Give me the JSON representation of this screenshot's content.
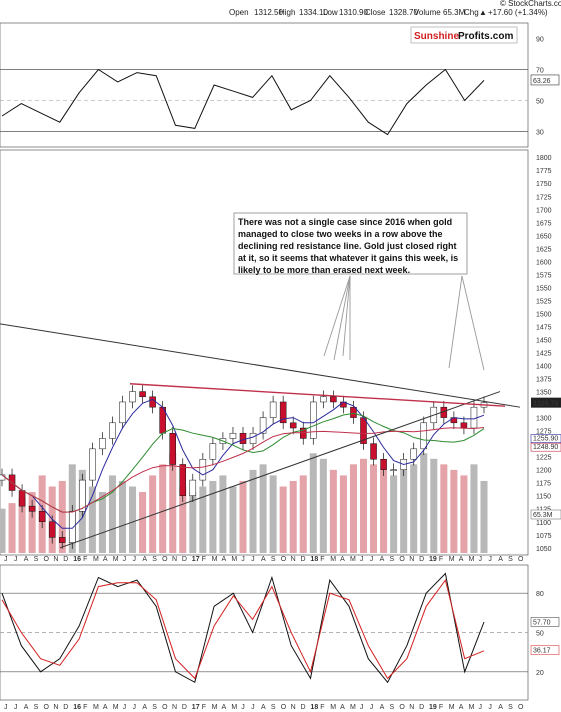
{
  "header": {
    "open_label": "Open",
    "open_value": "1312.50",
    "high_label": "High",
    "high_value": "1334.10",
    "low_label": "Low",
    "low_value": "1310.90",
    "close_label": "Close",
    "close_value": "1328.70",
    "volume_label": "Volume",
    "volume_value": "65.3M",
    "chg_label": "Chg",
    "chg_value": "+17.60 (+1.34%)",
    "chg_arrow": "▲",
    "credit": "© StockCharts.com"
  },
  "logo": {
    "part1": "Sunshine",
    "part2": "Profits",
    "part3": ".com"
  },
  "annotation": {
    "lines": [
      "There was not a single case since 2016 when gold",
      "managed to close two weeks in a row above the",
      "declining red resistance line. Gold just closed right",
      "at it, so it seems that whatever it gains this week, is",
      "likely to be more than erased next week."
    ]
  },
  "colors": {
    "price_up": "#ffffff",
    "price_down": "#c8102e",
    "ma_green": "#2e8b2e",
    "ma_red": "#c0304a",
    "ma_blue": "#2b2b9e",
    "resistance": "#c0304a",
    "rsi_line": "#111111",
    "stoch_k": "#111111",
    "stoch_d": "#d42020",
    "vol_up": "#b8b8b8",
    "vol_down": "#e3a3a8",
    "badge_dark": "#222222"
  },
  "chart_data": [
    {
      "type": "line",
      "panel": "rsi",
      "ylim": [
        20,
        100
      ],
      "y_ticks": [
        "90",
        "70",
        "50",
        "30"
      ],
      "reference_levels": [
        70,
        30
      ],
      "last_value_label": "63.26",
      "x": [
        "2015-05",
        "2015-07",
        "2015-09",
        "2015-11",
        "2016-01",
        "2016-02",
        "2016-04",
        "2016-06",
        "2016-08",
        "2016-10",
        "2016-12",
        "2017-02",
        "2017-04",
        "2017-06",
        "2017-08",
        "2017-10",
        "2017-12",
        "2018-02",
        "2018-04",
        "2018-06",
        "2018-08",
        "2018-10",
        "2018-12",
        "2019-02",
        "2019-04",
        "2019-06"
      ],
      "values": [
        40,
        48,
        42,
        36,
        55,
        70,
        62,
        68,
        66,
        34,
        32,
        60,
        56,
        52,
        66,
        44,
        50,
        66,
        52,
        36,
        28,
        48,
        60,
        70,
        50,
        63
      ]
    },
    {
      "type": "bar",
      "panel": "price",
      "description_free": true,
      "ylim": [
        1040,
        1810
      ],
      "y_ticks": [
        "1800",
        "1775",
        "1750",
        "1725",
        "1700",
        "1675",
        "1650",
        "1625",
        "1600",
        "1575",
        "1550",
        "1525",
        "1500",
        "1475",
        "1450",
        "1425",
        "1400",
        "1375",
        "1350",
        "1325",
        "1300",
        "1275",
        "1250",
        "1225",
        "1200",
        "1175",
        "1150",
        "1125",
        "1100",
        "1075",
        "1050"
      ],
      "x_labels": [
        "J",
        "J",
        "A",
        "S",
        "O",
        "N",
        "D",
        "16",
        "F",
        "M",
        "A",
        "M",
        "J",
        "J",
        "A",
        "S",
        "O",
        "N",
        "D",
        "17",
        "F",
        "M",
        "A",
        "M",
        "J",
        "J",
        "A",
        "S",
        "O",
        "N",
        "D",
        "18",
        "F",
        "M",
        "A",
        "M",
        "J",
        "J",
        "A",
        "S",
        "O",
        "N",
        "D",
        "19",
        "F",
        "M",
        "A",
        "M",
        "J",
        "J",
        "A",
        "S",
        "O"
      ],
      "close": [
        1190,
        1160,
        1130,
        1120,
        1100,
        1070,
        1060,
        1120,
        1180,
        1240,
        1260,
        1290,
        1330,
        1350,
        1340,
        1320,
        1270,
        1210,
        1150,
        1180,
        1220,
        1250,
        1260,
        1270,
        1250,
        1270,
        1300,
        1330,
        1290,
        1280,
        1260,
        1330,
        1340,
        1330,
        1320,
        1300,
        1250,
        1220,
        1200,
        1200,
        1220,
        1240,
        1290,
        1320,
        1300,
        1290,
        1280,
        1320,
        1328.7
      ],
      "last_price_label": "1328.70",
      "ma_labels": [
        "1255.90",
        "1248.90"
      ],
      "volume_label": "65.3M",
      "volume_ylim": [
        0,
        120
      ],
      "volume": [
        40,
        45,
        50,
        55,
        70,
        60,
        65,
        80,
        75,
        60,
        55,
        70,
        65,
        60,
        55,
        70,
        80,
        90,
        60,
        55,
        60,
        65,
        70,
        60,
        65,
        75,
        80,
        70,
        60,
        65,
        70,
        90,
        85,
        75,
        70,
        80,
        85,
        80,
        75,
        70,
        75,
        80,
        90,
        85,
        80,
        75,
        70,
        80,
        65
      ],
      "resistance_label": "declining red resistance line"
    },
    {
      "type": "line",
      "panel": "stochastic",
      "ylim": [
        0,
        100
      ],
      "y_ticks": [
        "80",
        "50",
        "20"
      ],
      "reference_levels": [
        80,
        50,
        20
      ],
      "last_value_labels": [
        "57.70",
        "36.17"
      ],
      "x": [
        "2015-05",
        "2015-07",
        "2015-09",
        "2015-11",
        "2016-01",
        "2016-02",
        "2016-04",
        "2016-06",
        "2016-08",
        "2016-10",
        "2016-12",
        "2017-02",
        "2017-04",
        "2017-06",
        "2017-08",
        "2017-10",
        "2017-12",
        "2018-02",
        "2018-04",
        "2018-06",
        "2018-08",
        "2018-10",
        "2018-12",
        "2019-02",
        "2019-04",
        "2019-06"
      ],
      "series": [
        {
          "values": [
            80,
            40,
            20,
            30,
            55,
            92,
            85,
            90,
            70,
            20,
            12,
            70,
            80,
            50,
            92,
            40,
            15,
            90,
            70,
            30,
            12,
            40,
            80,
            95,
            20,
            58
          ]
        },
        {
          "values": [
            75,
            50,
            30,
            25,
            45,
            85,
            88,
            88,
            75,
            30,
            15,
            55,
            78,
            60,
            85,
            50,
            20,
            80,
            75,
            40,
            15,
            30,
            70,
            90,
            30,
            36
          ]
        }
      ]
    }
  ]
}
